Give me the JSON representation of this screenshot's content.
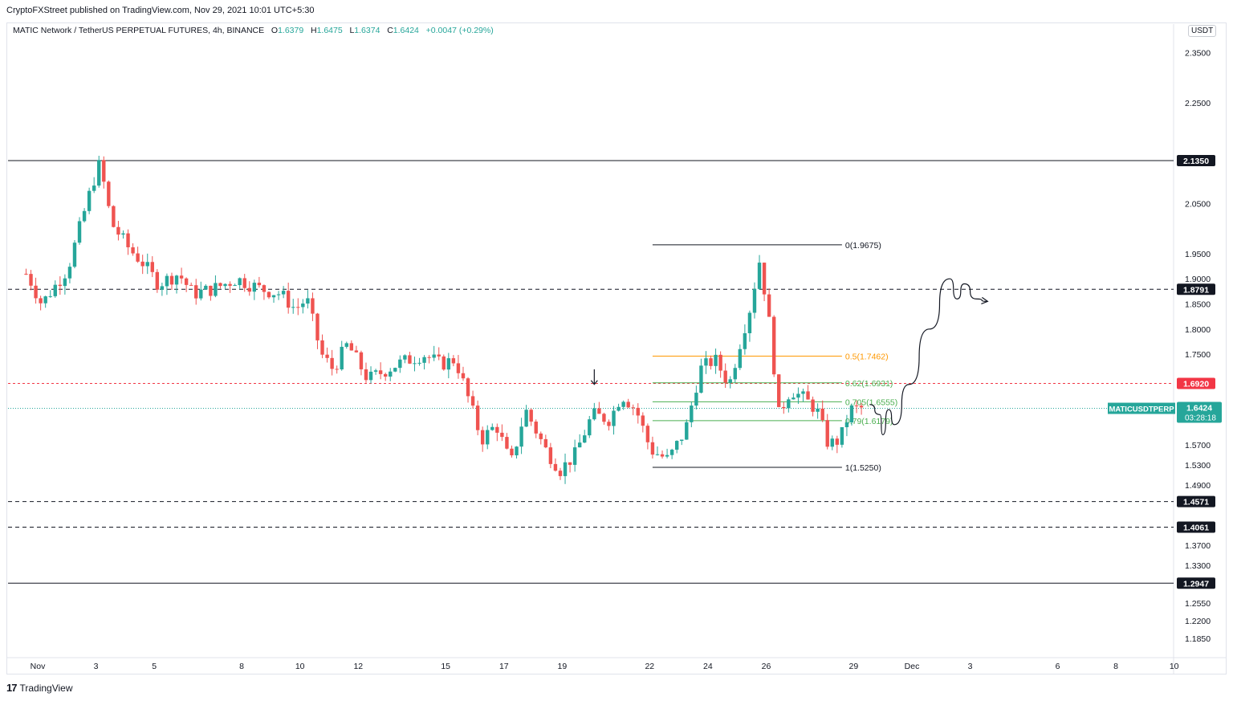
{
  "publisher_line": "CryptoFXStreet published on TradingView.com, Nov 29, 2021 10:01 UTC+5:30",
  "legend": {
    "symbol": "MATIC Network / TetherUS PERPETUAL FUTURES, 4h, BINANCE",
    "o_label": "O",
    "o_value": "1.6379",
    "h_label": "H",
    "h_value": "1.6475",
    "l_label": "L",
    "l_value": "1.6374",
    "c_label": "C",
    "c_value": "1.6424",
    "change": "+0.0047 (+0.29%)"
  },
  "currency_badge": "USDT",
  "footer_brand": "TradingView",
  "colors": {
    "up": "#26a69a",
    "down": "#ef5350",
    "fib_half": "#ff9800",
    "fib_green": "#4caf50",
    "marker_red": "#f23645",
    "label_bg": "#131722"
  },
  "chart_data": {
    "type": "candlestick",
    "timeframe": "4h",
    "ylim": [
      1.15,
      2.4
    ],
    "y_ticks": [
      "2.3500",
      "2.2500",
      "2.0500",
      "1.9500",
      "1.9000",
      "1.8500",
      "1.8000",
      "1.7500",
      "1.5700",
      "1.5300",
      "1.4900",
      "1.3700",
      "1.3300",
      "1.2550",
      "1.2200",
      "1.1850"
    ],
    "x_ticks": [
      {
        "label": "Nov",
        "day": 1
      },
      {
        "label": "3",
        "day": 3
      },
      {
        "label": "5",
        "day": 5
      },
      {
        "label": "8",
        "day": 8
      },
      {
        "label": "10",
        "day": 10
      },
      {
        "label": "12",
        "day": 12
      },
      {
        "label": "15",
        "day": 15
      },
      {
        "label": "17",
        "day": 17
      },
      {
        "label": "19",
        "day": 19
      },
      {
        "label": "22",
        "day": 22
      },
      {
        "label": "24",
        "day": 24
      },
      {
        "label": "26",
        "day": 26
      },
      {
        "label": "29",
        "day": 29
      },
      {
        "label": "Dec",
        "day": 31
      },
      {
        "label": "3",
        "day": 33
      },
      {
        "label": "6",
        "day": 36
      },
      {
        "label": "8",
        "day": 38
      },
      {
        "label": "10",
        "day": 40
      }
    ],
    "horizontal_levels": [
      {
        "price": 2.135,
        "label": "2.1350",
        "style": "solid"
      },
      {
        "price": 1.8791,
        "label": "1.8791",
        "style": "dashed"
      },
      {
        "price": 1.692,
        "label": "1.6920",
        "style": "dashed-red"
      },
      {
        "price": 1.4571,
        "label": "1.4571",
        "style": "dashed"
      },
      {
        "price": 1.4061,
        "label": "1.4061",
        "style": "dashed"
      },
      {
        "price": 1.2947,
        "label": "1.2947",
        "style": "solid"
      }
    ],
    "current_price": {
      "price": 1.6424,
      "label": "1.6424",
      "symbol": "MATICUSDTPERP",
      "countdown": "03:28:18"
    },
    "fibonacci": {
      "start_day": 22.1,
      "end_day": 28.6,
      "levels": [
        {
          "ratio_label": "0(1.9675)",
          "price": 1.9675,
          "color": "#131722"
        },
        {
          "ratio_label": "0.5(1.7462)",
          "price": 1.7462,
          "color": "#ff9800"
        },
        {
          "ratio_label": "0.62(1.6931)",
          "price": 1.6931,
          "color": "#4caf50"
        },
        {
          "ratio_label": "0.705(1.6555)",
          "price": 1.6555,
          "color": "#4caf50"
        },
        {
          "ratio_label": "0.79(1.6179)",
          "price": 1.6179,
          "color": "#4caf50"
        },
        {
          "ratio_label": "1(1.5250)",
          "price": 1.525,
          "color": "#131722"
        }
      ]
    },
    "arrow_marker": {
      "day": 20.1,
      "price_top": 1.72,
      "price_bottom": 1.69
    },
    "projection_path": [
      {
        "day": 29.55,
        "price": 1.65
      },
      {
        "day": 29.9,
        "price": 1.63
      },
      {
        "day": 30.0,
        "price": 1.59
      },
      {
        "day": 30.2,
        "price": 1.64
      },
      {
        "day": 30.4,
        "price": 1.61
      },
      {
        "day": 30.9,
        "price": 1.69
      },
      {
        "day": 31.6,
        "price": 1.8
      },
      {
        "day": 32.3,
        "price": 1.9
      },
      {
        "day": 32.55,
        "price": 1.86
      },
      {
        "day": 32.8,
        "price": 1.89
      },
      {
        "day": 33.2,
        "price": 1.86
      },
      {
        "day": 33.6,
        "price": 1.855
      }
    ],
    "anchors": [
      {
        "day": 0.8,
        "price": 1.91
      },
      {
        "day": 1.3,
        "price": 1.85
      },
      {
        "day": 2.2,
        "price": 1.92
      },
      {
        "day": 3.05,
        "price": 2.09
      },
      {
        "day": 3.3,
        "price": 2.13
      },
      {
        "day": 3.7,
        "price": 2.01
      },
      {
        "day": 4.3,
        "price": 1.96
      },
      {
        "day": 4.8,
        "price": 1.93
      },
      {
        "day": 5.3,
        "price": 1.89
      },
      {
        "day": 6.0,
        "price": 1.91
      },
      {
        "day": 6.5,
        "price": 1.87
      },
      {
        "day": 7.2,
        "price": 1.88
      },
      {
        "day": 8.0,
        "price": 1.9
      },
      {
        "day": 8.8,
        "price": 1.88
      },
      {
        "day": 9.5,
        "price": 1.87
      },
      {
        "day": 10.0,
        "price": 1.84
      },
      {
        "day": 10.4,
        "price": 1.86
      },
      {
        "day": 10.9,
        "price": 1.75
      },
      {
        "day": 11.3,
        "price": 1.72
      },
      {
        "day": 11.8,
        "price": 1.77
      },
      {
        "day": 12.5,
        "price": 1.7
      },
      {
        "day": 13.5,
        "price": 1.73
      },
      {
        "day": 14.4,
        "price": 1.75
      },
      {
        "day": 15.0,
        "price": 1.73
      },
      {
        "day": 15.5,
        "price": 1.74
      },
      {
        "day": 15.9,
        "price": 1.67
      },
      {
        "day": 16.4,
        "price": 1.58
      },
      {
        "day": 16.9,
        "price": 1.61
      },
      {
        "day": 17.4,
        "price": 1.53
      },
      {
        "day": 17.9,
        "price": 1.64
      },
      {
        "day": 18.6,
        "price": 1.56
      },
      {
        "day": 19.1,
        "price": 1.52
      },
      {
        "day": 19.6,
        "price": 1.55
      },
      {
        "day": 20.2,
        "price": 1.63
      },
      {
        "day": 20.8,
        "price": 1.62
      },
      {
        "day": 21.2,
        "price": 1.67
      },
      {
        "day": 21.7,
        "price": 1.64
      },
      {
        "day": 22.2,
        "price": 1.56
      },
      {
        "day": 22.8,
        "price": 1.54
      },
      {
        "day": 23.4,
        "price": 1.6
      },
      {
        "day": 23.9,
        "price": 1.72
      },
      {
        "day": 24.4,
        "price": 1.74
      },
      {
        "day": 24.9,
        "price": 1.69
      },
      {
        "day": 25.3,
        "price": 1.78
      },
      {
        "day": 25.6,
        "price": 1.84
      },
      {
        "day": 25.95,
        "price": 1.94
      },
      {
        "day": 26.3,
        "price": 1.8
      },
      {
        "day": 26.6,
        "price": 1.63
      },
      {
        "day": 27.0,
        "price": 1.68
      },
      {
        "day": 27.5,
        "price": 1.66
      },
      {
        "day": 27.9,
        "price": 1.64
      },
      {
        "day": 28.3,
        "price": 1.57
      },
      {
        "day": 28.7,
        "price": 1.58
      },
      {
        "day": 29.05,
        "price": 1.64
      },
      {
        "day": 29.4,
        "price": 1.6424
      }
    ],
    "candle_start_day": 0.6,
    "candle_end_day": 29.35,
    "candles_per_day": 6
  }
}
